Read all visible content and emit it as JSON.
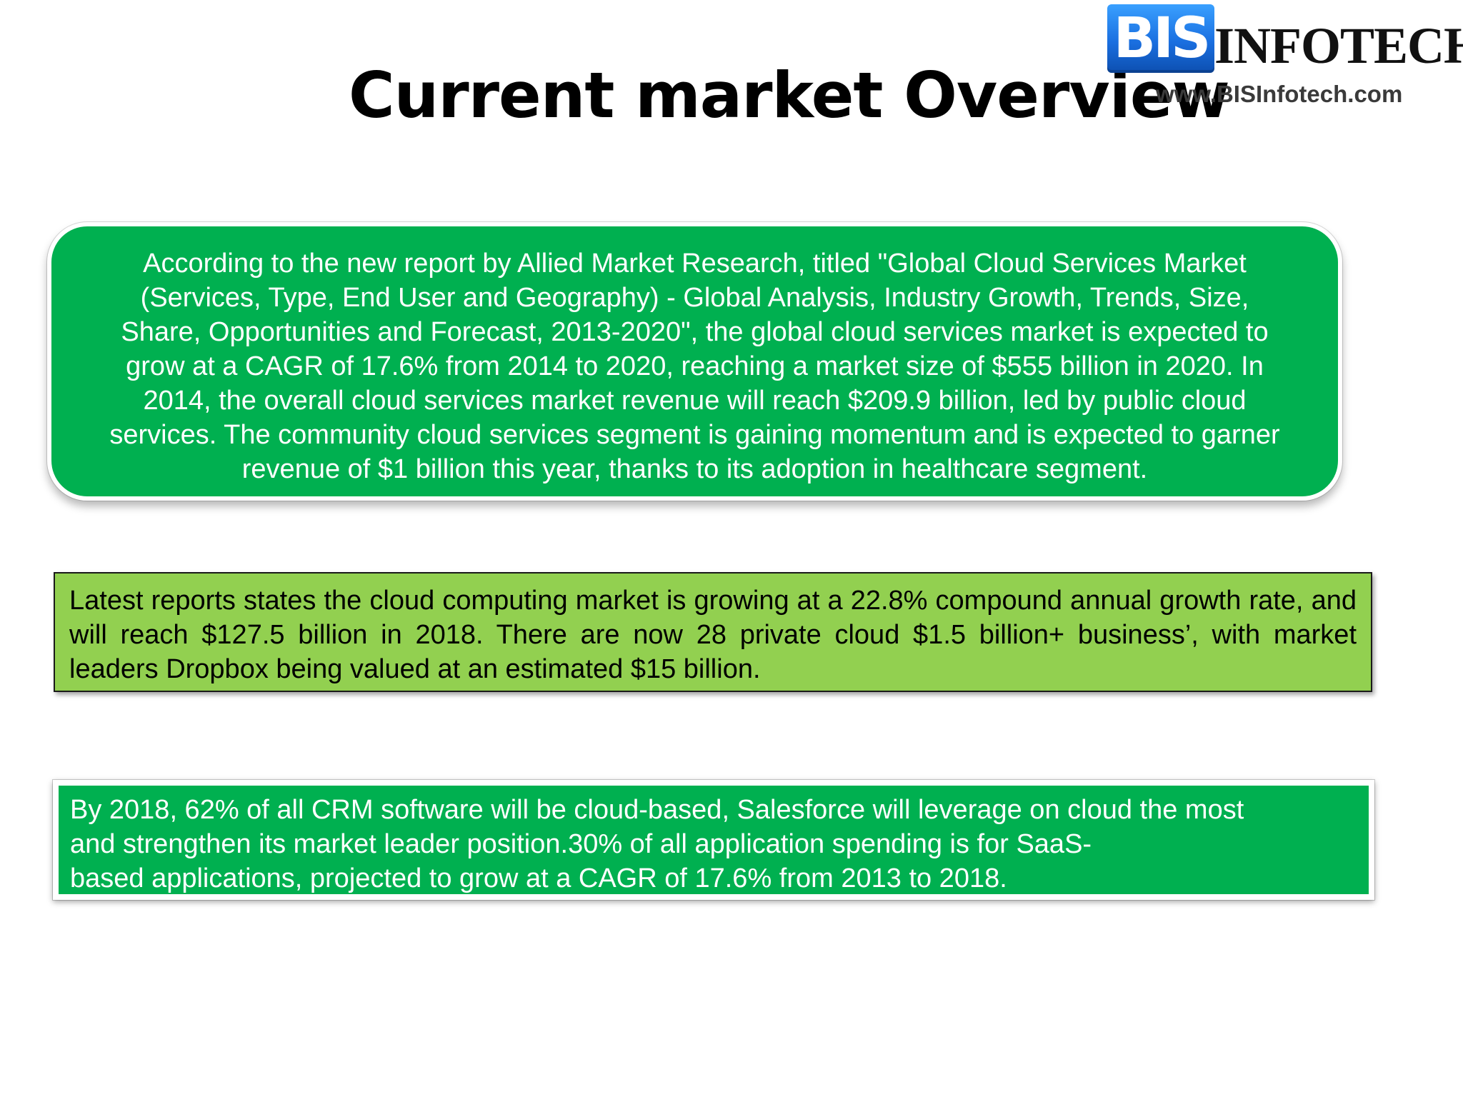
{
  "slide": {
    "title": "Current market Overview"
  },
  "logo": {
    "mark": "BIS",
    "wordmark": "INFOTECH",
    "url": "www.BISInfotech.com"
  },
  "box1": {
    "lines": [
      "According to the new report by Allied Market Research, titled \"Global Cloud Services Market",
      "(Services, Type, End User and Geography) - Global Analysis, Industry Growth, Trends, Size,",
      "Share, Opportunities and Forecast, 2013-2020\", the global cloud services market is expected to",
      "grow at a CAGR of 17.6% from 2014 to 2020, reaching a market size of $555 billion in 2020. In",
      "2014, the overall cloud services market revenue will reach $209.9 billion, led by public cloud",
      "services. The community cloud services segment is gaining momentum and is expected to garner",
      "revenue of $1 billion this year, thanks to its adoption in healthcare segment."
    ]
  },
  "box2": {
    "text": "Latest reports states the cloud computing market is growing at a 22.8% compound annual growth rate, and will reach $127.5 billion in 2018. There are now 28 private cloud $1.5 billion+ business’, with market leaders Dropbox being valued at an estimated $15 billion."
  },
  "box3": {
    "lines": [
      "By 2018, 62% of all CRM  software will be cloud-based, Salesforce will leverage on cloud the most",
      "and strengthen its market leader position.30% of all application spending is for SaaS-",
      "based applications, projected to grow at a CAGR of 17.6%  from 2013 to 2018."
    ]
  },
  "colors": {
    "box_green": "#00b050",
    "box_light_green": "#92d050",
    "logo_blue": "#1a6fe0"
  }
}
